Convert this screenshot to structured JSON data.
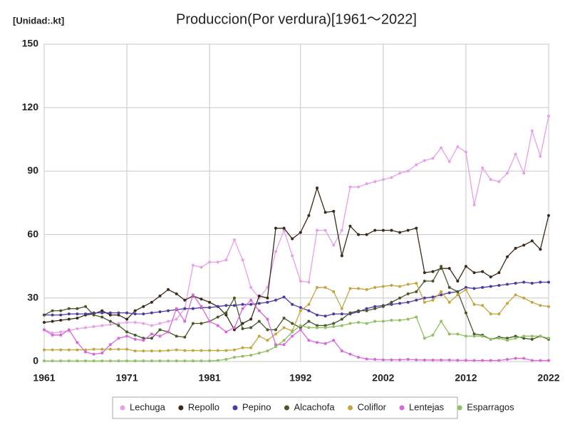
{
  "chart_data": {
    "type": "line",
    "title": "Produccion(Por verdura)[1961～2022]",
    "unit_label": "[Unidad:.kt]",
    "x": [
      1961,
      1962,
      1963,
      1964,
      1965,
      1966,
      1967,
      1968,
      1969,
      1970,
      1971,
      1972,
      1973,
      1974,
      1975,
      1976,
      1977,
      1978,
      1979,
      1980,
      1981,
      1982,
      1983,
      1984,
      1985,
      1986,
      1987,
      1988,
      1989,
      1990,
      1991,
      1992,
      1993,
      1994,
      1995,
      1996,
      1997,
      1998,
      1999,
      2000,
      2001,
      2002,
      2003,
      2004,
      2005,
      2006,
      2007,
      2008,
      2009,
      2010,
      2011,
      2012,
      2013,
      2014,
      2015,
      2016,
      2017,
      2018,
      2019,
      2020,
      2021,
      2022
    ],
    "xlim": [
      1961,
      2022
    ],
    "xticks": [
      1961,
      1971,
      1981,
      1992,
      2002,
      2012,
      2022
    ],
    "ylim": [
      0,
      150
    ],
    "yticks": [
      0,
      30,
      60,
      90,
      120,
      150
    ],
    "grid": true,
    "legend": "bottom",
    "series": [
      {
        "name": "Lechuga",
        "color": "#e8a0e8",
        "values": [
          15,
          13.5,
          14,
          14.5,
          15.5,
          16,
          16.5,
          17,
          17.5,
          18,
          18.5,
          18.5,
          18,
          17,
          18,
          19,
          20,
          25,
          45.5,
          44.5,
          47,
          47,
          48,
          57.5,
          48,
          35,
          30,
          35,
          52,
          62,
          50,
          38,
          37.5,
          62,
          62,
          55,
          62,
          82.5,
          82.5,
          84,
          85,
          86,
          87,
          89,
          90,
          93,
          95,
          96,
          101,
          94.5,
          101.5,
          99,
          74,
          91.5,
          86,
          85,
          89,
          98,
          89,
          109,
          97,
          116
        ]
      },
      {
        "name": "Repollo",
        "color": "#3b2a1a",
        "values": [
          18.5,
          19,
          19.5,
          20,
          20.5,
          22,
          22.5,
          24,
          22,
          22,
          20,
          24,
          26,
          28,
          31,
          34,
          32,
          29,
          31,
          29.5,
          28,
          26,
          22,
          15,
          18,
          20,
          31,
          30,
          63,
          63,
          58,
          61,
          69,
          82,
          70.5,
          71,
          50,
          64,
          60,
          60,
          62,
          62,
          62,
          61,
          62,
          63,
          42,
          42.5,
          44,
          44,
          38,
          45,
          42,
          42.5,
          40,
          42,
          49.5,
          53.5,
          55,
          57,
          53,
          69
        ]
      },
      {
        "name": "Pepino",
        "color": "#4b3aa0",
        "values": [
          22,
          22,
          22,
          22.5,
          22.5,
          22.5,
          23,
          23,
          23,
          23,
          23,
          22.5,
          22.5,
          23,
          23.5,
          24,
          24.5,
          25,
          25,
          25.5,
          25.5,
          26,
          26.5,
          26.5,
          27,
          27,
          27.5,
          28,
          29,
          30.5,
          27,
          25.5,
          24,
          22,
          21.5,
          22.5,
          22.5,
          22.5,
          23.5,
          25,
          26,
          26.5,
          27,
          27.5,
          28,
          29,
          30,
          30.5,
          31.5,
          32.5,
          33,
          35,
          34.5,
          35,
          35.5,
          36,
          36.5,
          37,
          37.5,
          37,
          37.5,
          37.5
        ]
      },
      {
        "name": "Alcachofa",
        "color": "#46582a",
        "values": [
          22,
          24,
          24,
          25,
          25,
          26,
          22,
          21,
          19,
          17,
          14,
          12.5,
          11,
          11,
          15,
          14,
          12,
          11.5,
          18,
          18,
          19,
          21,
          23,
          30,
          15.5,
          16,
          19,
          15,
          15,
          20.5,
          18,
          16,
          19,
          17,
          17,
          18,
          20,
          23,
          24,
          24,
          25,
          26,
          28,
          30,
          32,
          33,
          38,
          38,
          45,
          35,
          33,
          23,
          13,
          12.5,
          10.5,
          11.5,
          11,
          12,
          11,
          10.5,
          12,
          10.5
        ]
      },
      {
        "name": "Coliflor",
        "color": "#c4a640",
        "values": [
          5.5,
          5.5,
          5.5,
          5.5,
          5.5,
          5.5,
          5.8,
          5.8,
          5.8,
          5.8,
          5.8,
          5,
          5,
          5,
          5,
          5.2,
          5.5,
          5.2,
          5.2,
          5.2,
          5.2,
          5.2,
          5.2,
          5.5,
          6.5,
          6.5,
          12,
          10,
          13,
          16,
          14.5,
          24,
          27,
          35,
          35,
          33,
          25,
          34.5,
          34.5,
          34,
          35,
          35.5,
          36,
          35.5,
          36.5,
          37,
          28,
          29,
          33,
          28,
          31.5,
          34,
          27,
          26.5,
          22.5,
          22.5,
          27.5,
          31.5,
          30,
          28,
          26.5,
          26
        ]
      },
      {
        "name": "Lentejas",
        "color": "#d868d8",
        "values": [
          15,
          12.5,
          12.5,
          15,
          9,
          4.5,
          3.5,
          4,
          8,
          11,
          12,
          10.5,
          10,
          13,
          12,
          14,
          25,
          19,
          31.5,
          26,
          19,
          17,
          14,
          16,
          25,
          29,
          24,
          20,
          8,
          8,
          12,
          15,
          10,
          9,
          8.5,
          10,
          5,
          3.5,
          2,
          1.2,
          1,
          0.8,
          0.8,
          0.8,
          1,
          0.8,
          0.7,
          0.7,
          0.7,
          0.7,
          0.6,
          0.6,
          0.5,
          0.5,
          0.5,
          0.5,
          1,
          1.5,
          1.5,
          0.5,
          0.5,
          0.5
        ]
      },
      {
        "name": "Esparragos",
        "color": "#90c060",
        "values": [
          0.3,
          0.3,
          0.3,
          0.3,
          0.3,
          0.3,
          0.3,
          0.3,
          0.3,
          0.3,
          0.3,
          0.3,
          0.3,
          0.3,
          0.3,
          0.3,
          0.3,
          0.3,
          0.3,
          0.3,
          0.3,
          0.5,
          1,
          2,
          2.5,
          3,
          4,
          5,
          7,
          10,
          14,
          17,
          16,
          16,
          16,
          16.5,
          17,
          18,
          18.5,
          18,
          19,
          19,
          19.5,
          19.5,
          20,
          21,
          11,
          12.5,
          19,
          13,
          13,
          12,
          12,
          12,
          10.5,
          11,
          10,
          11,
          12,
          12,
          12,
          11
        ]
      }
    ]
  }
}
